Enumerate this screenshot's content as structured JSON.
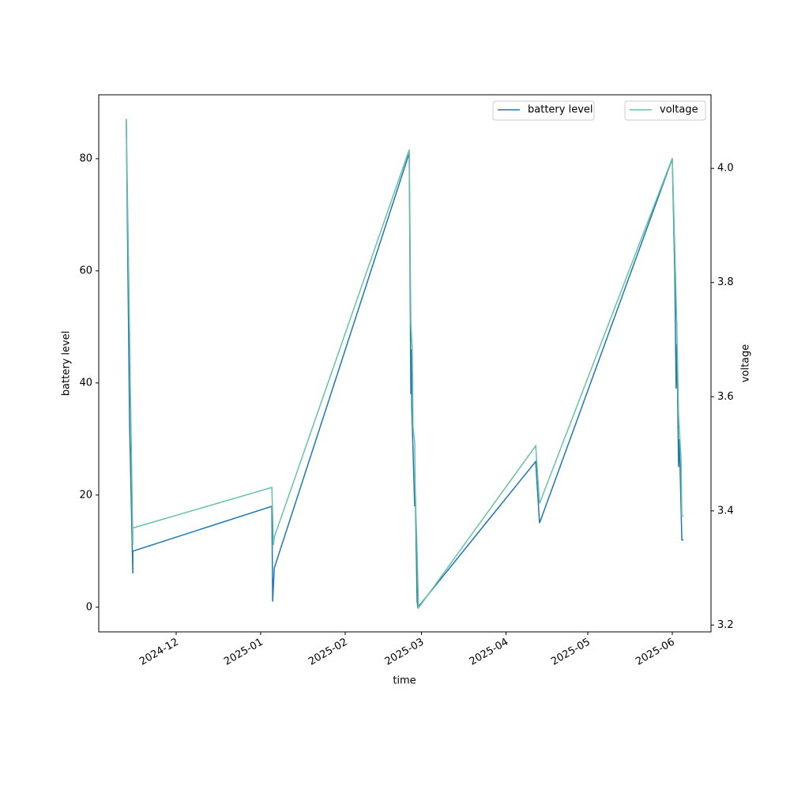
{
  "chart_data": {
    "type": "line",
    "xlabel": "time",
    "ylabel": "battery level",
    "y2label": "voltage",
    "xlim": [
      20029.6,
      20254.2
    ],
    "xticks": [
      {
        "value": 20058,
        "label": "2024-12"
      },
      {
        "value": 20089,
        "label": "2025-01"
      },
      {
        "value": 20120,
        "label": "2025-02"
      },
      {
        "value": 20148,
        "label": "2025-03"
      },
      {
        "value": 20179,
        "label": "2025-04"
      },
      {
        "value": 20209,
        "label": "2025-05"
      },
      {
        "value": 20240,
        "label": "2025-06"
      }
    ],
    "ylim": [
      -4.4,
      91.4
    ],
    "yticks": [
      0,
      20,
      40,
      60,
      80
    ],
    "y2lim": [
      3.188,
      4.129
    ],
    "y2ticks": [
      3.2,
      3.4,
      3.6,
      3.8,
      {
        "value": 4,
        "label": "4.0"
      }
    ],
    "series": [
      {
        "name": "battery level",
        "color": "#1f77b4",
        "x": [
          20039.7,
          20040.9,
          20042.1,
          20042.1,
          20093.1,
          20093.4,
          20094.0,
          20143.5,
          20144.1,
          20144.4,
          20144.4,
          20145.5,
          20145.7,
          20146.4,
          20146.7,
          20189.9,
          20191.3,
          20240.0,
          20240.9,
          20241.4,
          20241.7,
          20242.3,
          20242.6,
          20243.5,
          20244.1
        ],
        "values": [
          87,
          33,
          6,
          10,
          18,
          1,
          7,
          81,
          38,
          46,
          36,
          18,
          21,
          1,
          0,
          26,
          15,
          80,
          60,
          39,
          47,
          25,
          30,
          12,
          12
        ]
      },
      {
        "name": "voltage",
        "color": "#66c2a5",
        "axis": "y2",
        "x": [
          20039.7,
          20042.1,
          20042.1,
          20093.1,
          20093.7,
          20094.0,
          20143.5,
          20144.1,
          20144.6,
          20144.9,
          20145.5,
          20145.7,
          20146.4,
          20146.9,
          20189.9,
          20191.3,
          20240.0,
          20241.2,
          20241.7,
          20242.3,
          20243.2,
          20243.5,
          20244.1
        ],
        "values": [
          4.087,
          3.34,
          3.37,
          3.441,
          3.34,
          3.354,
          4.033,
          3.727,
          3.686,
          3.547,
          3.52,
          3.437,
          3.326,
          3.23,
          3.514,
          3.413,
          4.018,
          3.81,
          3.72,
          3.568,
          3.492,
          3.391,
          3.391
        ]
      }
    ],
    "legend": "upper right"
  }
}
